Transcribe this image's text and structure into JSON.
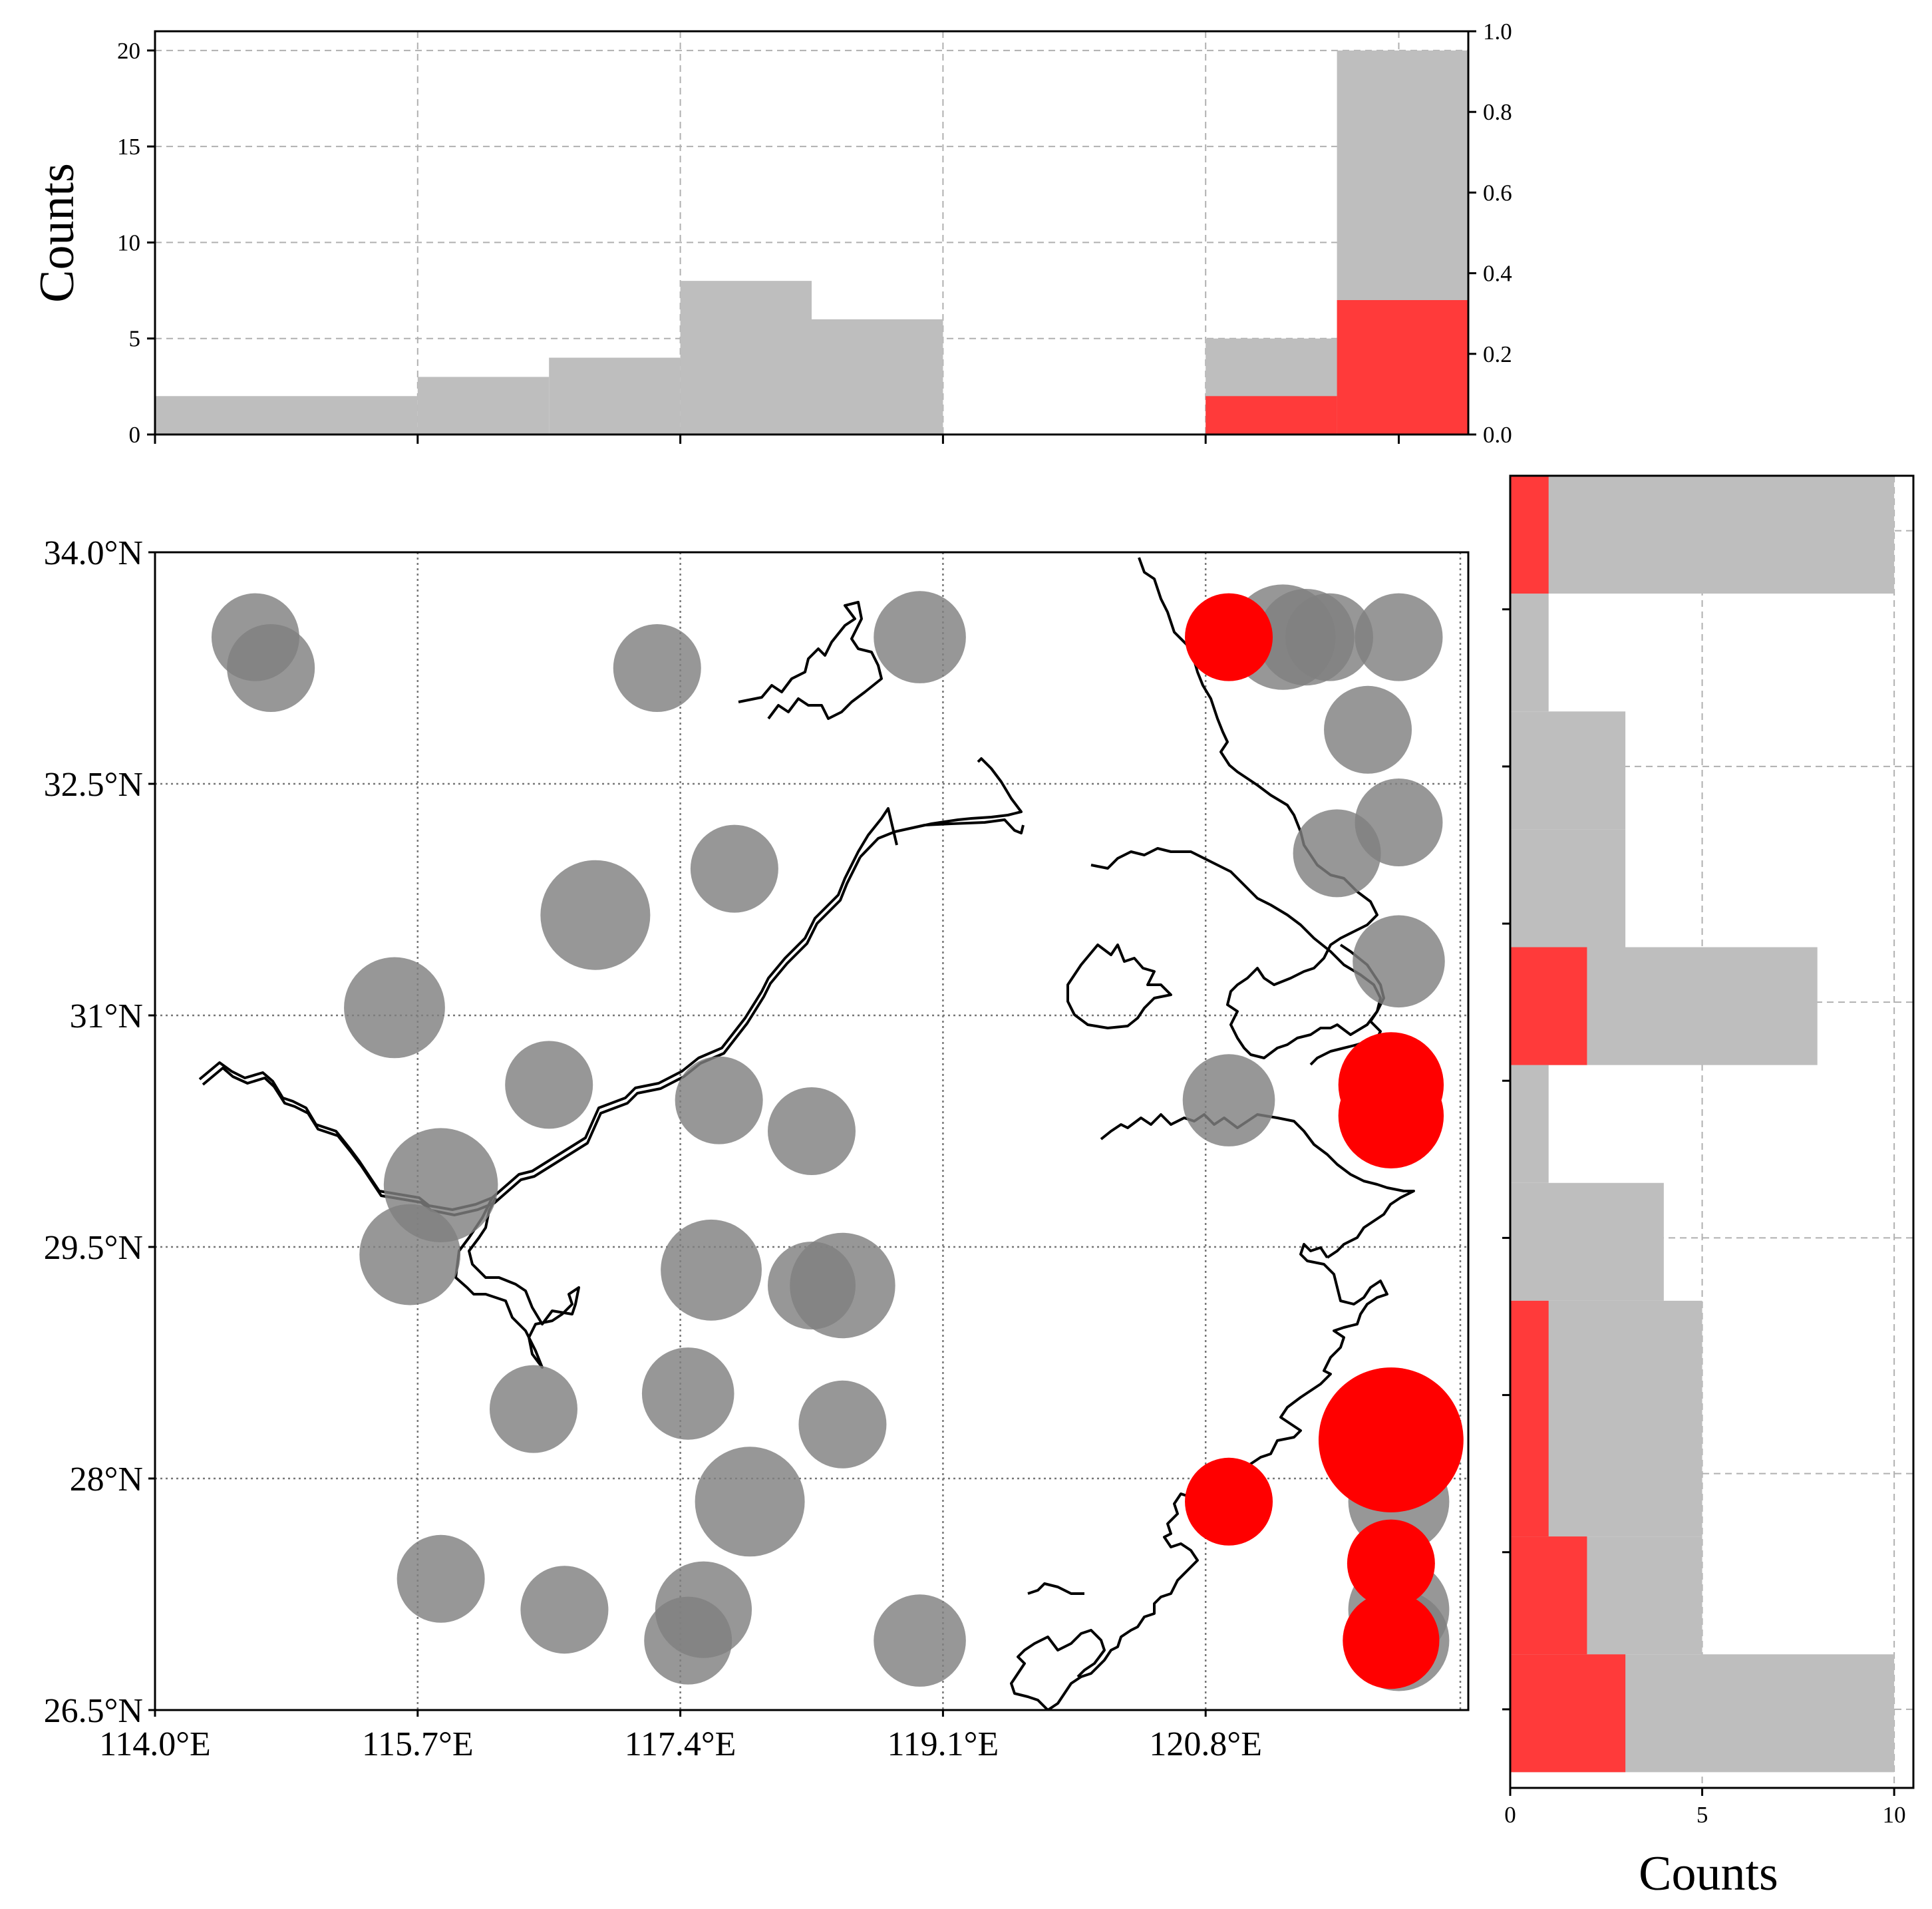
{
  "chart_data": [
    {
      "panel": "top-histogram",
      "type": "bar",
      "ylabel": "Counts",
      "ylim": [
        0,
        21
      ],
      "yticks": [
        "0",
        "5",
        "10",
        "15",
        "20"
      ],
      "right_yticks": [
        "0.0",
        "0.2",
        "0.4",
        "0.6",
        "0.8",
        "1.0"
      ],
      "right_ylim": [
        0,
        1.0
      ],
      "x_domain": [
        114.0,
        122.5
      ],
      "grid": true,
      "series": [
        {
          "color": "#bebebe",
          "bins": [
            {
              "x0": 114.0,
              "x1": 115.7,
              "count": 2
            },
            {
              "x0": 115.7,
              "x1": 116.55,
              "count": 3
            },
            {
              "x0": 116.55,
              "x1": 117.4,
              "count": 4
            },
            {
              "x0": 117.4,
              "x1": 118.25,
              "count": 8
            },
            {
              "x0": 118.25,
              "x1": 119.1,
              "count": 6
            },
            {
              "x0": 119.1,
              "x1": 119.95,
              "count": 0
            },
            {
              "x0": 119.95,
              "x1": 120.8,
              "count": 0
            },
            {
              "x0": 120.8,
              "x1": 121.65,
              "count": 5
            },
            {
              "x0": 121.65,
              "x1": 122.5,
              "count": 20
            }
          ]
        },
        {
          "color": "#ff3a3a",
          "bins": [
            {
              "x0": 120.8,
              "x1": 121.65,
              "count": 2
            },
            {
              "x0": 121.65,
              "x1": 122.5,
              "count": 7
            }
          ]
        }
      ]
    },
    {
      "panel": "right-histogram",
      "type": "bar",
      "orientation": "horizontal",
      "xlabel": "Counts",
      "xlim": [
        0,
        10.5
      ],
      "xticks": [
        "0",
        "5",
        "10"
      ],
      "y_domain": [
        26.0,
        34.35
      ],
      "grid": true,
      "series": [
        {
          "color": "#bebebe",
          "bins": [
            {
              "y0": 33.6,
              "y1": 34.35,
              "count": 10
            },
            {
              "y0": 32.85,
              "y1": 33.6,
              "count": 1
            },
            {
              "y0": 32.1,
              "y1": 32.85,
              "count": 3
            },
            {
              "y0": 31.35,
              "y1": 32.1,
              "count": 3
            },
            {
              "y0": 30.6,
              "y1": 31.35,
              "count": 8
            },
            {
              "y0": 29.85,
              "y1": 30.6,
              "count": 1
            },
            {
              "y0": 29.1,
              "y1": 29.85,
              "count": 4
            },
            {
              "y0": 28.35,
              "y1": 29.1,
              "count": 5
            },
            {
              "y0": 27.6,
              "y1": 28.35,
              "count": 5
            },
            {
              "y0": 26.85,
              "y1": 27.6,
              "count": 5
            },
            {
              "y0": 26.1,
              "y1": 26.85,
              "count": 10
            }
          ]
        },
        {
          "color": "#ff3a3a",
          "bins": [
            {
              "y0": 33.6,
              "y1": 34.35,
              "count": 1
            },
            {
              "y0": 30.6,
              "y1": 31.35,
              "count": 2
            },
            {
              "y0": 28.35,
              "y1": 29.1,
              "count": 1
            },
            {
              "y0": 27.6,
              "y1": 28.35,
              "count": 1
            },
            {
              "y0": 26.85,
              "y1": 27.6,
              "count": 2
            },
            {
              "y0": 26.1,
              "y1": 26.85,
              "count": 3
            }
          ]
        }
      ]
    },
    {
      "panel": "map",
      "type": "scatter",
      "xlim": [
        114.0,
        122.5
      ],
      "ylim": [
        26.5,
        34.0
      ],
      "xticks": [
        {
          "v": 114.0,
          "label": "114.0°E"
        },
        {
          "v": 115.7,
          "label": "115.7°E"
        },
        {
          "v": 117.4,
          "label": "117.4°E"
        },
        {
          "v": 119.1,
          "label": "119.1°E"
        },
        {
          "v": 120.8,
          "label": "120.8°E"
        }
      ],
      "yticks": [
        {
          "v": 26.5,
          "label": "26.5°N"
        },
        {
          "v": 28.0,
          "label": "28°N"
        },
        {
          "v": 29.5,
          "label": "29.5°N"
        },
        {
          "v": 31.0,
          "label": "31°N"
        },
        {
          "v": 32.5,
          "label": "32.5°N"
        },
        {
          "v": 34.0,
          "label": "34.0°N"
        }
      ],
      "grid": "dotted",
      "point_colors": {
        "gray": "#808080",
        "red": "#ff0000"
      },
      "points": [
        {
          "lon": 114.65,
          "lat": 33.45,
          "size": 1.0,
          "c": "gray"
        },
        {
          "lon": 114.75,
          "lat": 33.25,
          "size": 1.0,
          "c": "gray"
        },
        {
          "lon": 117.25,
          "lat": 33.25,
          "size": 1.0,
          "c": "gray"
        },
        {
          "lon": 118.95,
          "lat": 33.45,
          "size": 1.05,
          "c": "gray"
        },
        {
          "lon": 121.3,
          "lat": 33.45,
          "size": 1.2,
          "c": "gray"
        },
        {
          "lon": 121.45,
          "lat": 33.45,
          "size": 1.1,
          "c": "gray"
        },
        {
          "lon": 121.6,
          "lat": 33.45,
          "size": 1.0,
          "c": "gray"
        },
        {
          "lon": 122.05,
          "lat": 33.45,
          "size": 1.0,
          "c": "gray"
        },
        {
          "lon": 121.85,
          "lat": 32.85,
          "size": 1.0,
          "c": "gray"
        },
        {
          "lon": 122.05,
          "lat": 32.25,
          "size": 1.0,
          "c": "gray"
        },
        {
          "lon": 121.65,
          "lat": 32.05,
          "size": 1.0,
          "c": "gray"
        },
        {
          "lon": 122.05,
          "lat": 31.35,
          "size": 1.05,
          "c": "gray"
        },
        {
          "lon": 117.75,
          "lat": 31.95,
          "size": 1.0,
          "c": "gray"
        },
        {
          "lon": 116.85,
          "lat": 31.65,
          "size": 1.25,
          "c": "gray"
        },
        {
          "lon": 115.55,
          "lat": 31.05,
          "size": 1.15,
          "c": "gray"
        },
        {
          "lon": 116.55,
          "lat": 30.55,
          "size": 1.0,
          "c": "gray"
        },
        {
          "lon": 117.65,
          "lat": 30.45,
          "size": 1.0,
          "c": "gray"
        },
        {
          "lon": 118.25,
          "lat": 30.25,
          "size": 1.0,
          "c": "gray"
        },
        {
          "lon": 115.85,
          "lat": 29.9,
          "size": 1.3,
          "c": "gray"
        },
        {
          "lon": 115.65,
          "lat": 29.45,
          "size": 1.15,
          "c": "gray"
        },
        {
          "lon": 117.6,
          "lat": 29.35,
          "size": 1.15,
          "c": "gray"
        },
        {
          "lon": 118.25,
          "lat": 29.25,
          "size": 1.0,
          "c": "gray"
        },
        {
          "lon": 118.45,
          "lat": 29.25,
          "size": 1.2,
          "c": "gray"
        },
        {
          "lon": 116.45,
          "lat": 28.45,
          "size": 1.0,
          "c": "gray"
        },
        {
          "lon": 117.45,
          "lat": 28.55,
          "size": 1.05,
          "c": "gray"
        },
        {
          "lon": 118.45,
          "lat": 28.35,
          "size": 1.0,
          "c": "gray"
        },
        {
          "lon": 117.85,
          "lat": 27.85,
          "size": 1.25,
          "c": "gray"
        },
        {
          "lon": 115.85,
          "lat": 27.35,
          "size": 1.0,
          "c": "gray"
        },
        {
          "lon": 116.65,
          "lat": 27.15,
          "size": 1.0,
          "c": "gray"
        },
        {
          "lon": 117.55,
          "lat": 27.15,
          "size": 1.1,
          "c": "gray"
        },
        {
          "lon": 117.45,
          "lat": 26.95,
          "size": 1.0,
          "c": "gray"
        },
        {
          "lon": 118.95,
          "lat": 26.95,
          "size": 1.05,
          "c": "gray"
        },
        {
          "lon": 120.95,
          "lat": 30.45,
          "size": 1.05,
          "c": "gray"
        },
        {
          "lon": 122.05,
          "lat": 27.85,
          "size": 1.15,
          "c": "gray"
        },
        {
          "lon": 122.05,
          "lat": 27.15,
          "size": 1.15,
          "c": "gray"
        },
        {
          "lon": 122.05,
          "lat": 26.95,
          "size": 1.15,
          "c": "gray"
        },
        {
          "lon": 120.95,
          "lat": 33.45,
          "size": 1.0,
          "c": "red"
        },
        {
          "lon": 122.0,
          "lat": 30.55,
          "size": 1.2,
          "c": "red"
        },
        {
          "lon": 122.0,
          "lat": 30.35,
          "size": 1.2,
          "c": "red"
        },
        {
          "lon": 122.0,
          "lat": 28.25,
          "size": 1.65,
          "c": "red"
        },
        {
          "lon": 120.95,
          "lat": 27.85,
          "size": 1.0,
          "c": "red"
        },
        {
          "lon": 122.0,
          "lat": 27.45,
          "size": 1.0,
          "c": "red"
        },
        {
          "lon": 122.0,
          "lat": 26.95,
          "size": 1.1,
          "c": "red"
        }
      ],
      "coastline_color": "#000000"
    }
  ]
}
